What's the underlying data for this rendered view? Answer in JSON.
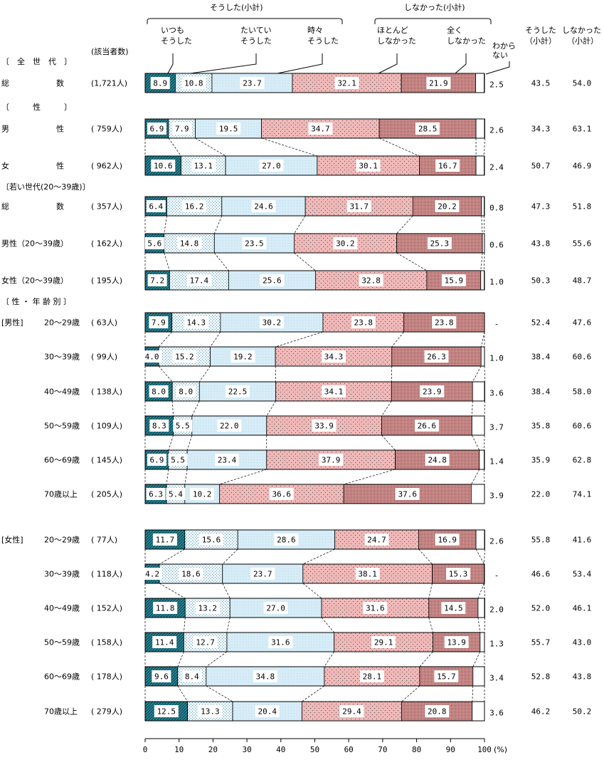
{
  "chart_data": {
    "type": "bar",
    "orientation": "horizontal-stacked-100",
    "xlim": [
      0,
      100
    ],
    "x_ticks": [
      "0",
      "10",
      "20",
      "30",
      "40",
      "50",
      "60",
      "70",
      "80",
      "90",
      "100"
    ],
    "x_unit": "(%)",
    "grid": false,
    "header": {
      "group_sou": "そうした(小計)",
      "group_shinakatta": "しなかった(小計)",
      "count_header": "(該当者数)",
      "sub_sou": [
        "そうした",
        "（小計）"
      ],
      "sub_shinakatta": [
        "しなかった",
        "（小計）"
      ]
    },
    "series": [
      {
        "name": [
          "いつも",
          "そうした"
        ],
        "color": "#2b8a9a"
      },
      {
        "name": [
          "たいてい",
          "そうした"
        ],
        "color": "#e8f4fb"
      },
      {
        "name": [
          "時々",
          "そうした"
        ],
        "color": "#d6ecf7"
      },
      {
        "name": [
          "ほとんど",
          "しなかった"
        ],
        "color": "#f0b8b8"
      },
      {
        "name": [
          "全く",
          "しなかった"
        ],
        "color": "#c98a8a"
      },
      {
        "name": [
          "わから",
          "ない"
        ],
        "color": "#ffffff"
      }
    ],
    "sections": [
      {
        "title": "〔　全　世　代　〕"
      },
      {
        "title": "〔　　　性　　　〕"
      },
      {
        "title": "〔若い世代(20～39歳)〕"
      },
      {
        "title": "〔 性 ・ 年 齢 別 〕"
      }
    ],
    "rows": [
      {
        "label": "総　　　　　　数",
        "group": "",
        "count": "(1,721人)",
        "values": [
          8.9,
          10.8,
          23.7,
          32.1,
          21.9,
          2.5
        ],
        "dk": "2.5",
        "sou": "43.5",
        "shinakatta": "54.0"
      },
      {
        "label": "男　　　　　　性",
        "group": "",
        "count": "(  759人)",
        "values": [
          6.9,
          7.9,
          19.5,
          34.7,
          28.5,
          2.6
        ],
        "dk": "2.6",
        "sou": "34.3",
        "shinakatta": "63.1"
      },
      {
        "label": "女　　　　　　性",
        "group": "",
        "count": "(  962人)",
        "values": [
          10.6,
          13.1,
          27.0,
          30.1,
          16.7,
          2.4
        ],
        "dk": "2.4",
        "sou": "50.7",
        "shinakatta": "46.9"
      },
      {
        "label": "総　　　　　　数",
        "group": "",
        "count": "(  357人)",
        "values": [
          6.4,
          16.2,
          24.6,
          31.7,
          20.2,
          0.8
        ],
        "dk": "0.8",
        "sou": "47.3",
        "shinakatta": "51.8"
      },
      {
        "label": "男性（20～39歳）",
        "group": "",
        "count": "(  162人)",
        "values": [
          5.6,
          14.8,
          23.5,
          30.2,
          25.3,
          0.6
        ],
        "dk": "0.6",
        "sou": "43.8",
        "shinakatta": "55.6"
      },
      {
        "label": "女性（20～39歳）",
        "group": "",
        "count": "(  195人)",
        "values": [
          7.2,
          17.4,
          25.6,
          32.8,
          15.9,
          1.0
        ],
        "dk": "1.0",
        "sou": "50.3",
        "shinakatta": "48.7"
      },
      {
        "label": "20～29歳",
        "group": "[男性]",
        "count": "(   63人)",
        "values": [
          7.9,
          14.3,
          30.2,
          23.8,
          23.8,
          0
        ],
        "dk": "-",
        "sou": "52.4",
        "shinakatta": "47.6"
      },
      {
        "label": "30～39歳",
        "group": "",
        "count": "(   99人)",
        "values": [
          4.0,
          15.2,
          19.2,
          34.3,
          26.3,
          1.0
        ],
        "dk": "1.0",
        "sou": "38.4",
        "shinakatta": "60.6"
      },
      {
        "label": "40～49歳",
        "group": "",
        "count": "(  138人)",
        "values": [
          8.0,
          8.0,
          22.5,
          34.1,
          23.9,
          3.6
        ],
        "dk": "3.6",
        "sou": "38.4",
        "shinakatta": "58.0"
      },
      {
        "label": "50～59歳",
        "group": "",
        "count": "(  109人)",
        "values": [
          8.3,
          5.5,
          22.0,
          33.9,
          26.6,
          3.7
        ],
        "dk": "3.7",
        "sou": "35.8",
        "shinakatta": "60.6"
      },
      {
        "label": "60～69歳",
        "group": "",
        "count": "(  145人)",
        "values": [
          6.9,
          5.5,
          23.4,
          37.9,
          24.8,
          1.4
        ],
        "dk": "1.4",
        "sou": "35.9",
        "shinakatta": "62.8"
      },
      {
        "label": "70歳以上",
        "group": "",
        "count": "(  205人)",
        "values": [
          6.3,
          5.4,
          10.2,
          36.6,
          37.6,
          3.9
        ],
        "dk": "3.9",
        "sou": "22.0",
        "shinakatta": "74.1"
      },
      {
        "label": "20～29歳",
        "group": "[女性]",
        "count": "(   77人)",
        "values": [
          11.7,
          15.6,
          28.6,
          24.7,
          16.9,
          2.6
        ],
        "dk": "2.6",
        "sou": "55.8",
        "shinakatta": "41.6"
      },
      {
        "label": "30～39歳",
        "group": "",
        "count": "(  118人)",
        "values": [
          4.2,
          18.6,
          23.7,
          38.1,
          15.3,
          0
        ],
        "dk": "-",
        "sou": "46.6",
        "shinakatta": "53.4"
      },
      {
        "label": "40～49歳",
        "group": "",
        "count": "(  152人)",
        "values": [
          11.8,
          13.2,
          27.0,
          31.6,
          14.5,
          2.0
        ],
        "dk": "2.0",
        "sou": "52.0",
        "shinakatta": "46.1"
      },
      {
        "label": "50～59歳",
        "group": "",
        "count": "(  158人)",
        "values": [
          11.4,
          12.7,
          31.6,
          29.1,
          13.9,
          1.3
        ],
        "dk": "1.3",
        "sou": "55.7",
        "shinakatta": "43.0"
      },
      {
        "label": "60～69歳",
        "group": "",
        "count": "(  178人)",
        "values": [
          9.6,
          8.4,
          34.8,
          28.1,
          15.7,
          3.4
        ],
        "dk": "3.4",
        "sou": "52.8",
        "shinakatta": "43.8"
      },
      {
        "label": "70歳以上",
        "group": "",
        "count": "(  279人)",
        "values": [
          12.5,
          13.3,
          20.4,
          29.4,
          20.8,
          3.6
        ],
        "dk": "3.6",
        "sou": "46.2",
        "shinakatta": "50.2"
      }
    ]
  }
}
